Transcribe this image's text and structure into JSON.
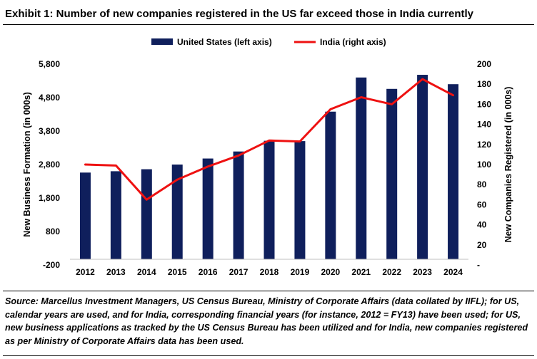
{
  "title": "Exhibit 1: Number of new companies registered in the US far exceed those in India currently",
  "source": "Source: Marcellus Investment Managers, US Census Bureau, Ministry of Corporate Affairs (data collated by IIFL); for US, calendar years are used, and for India, corresponding financial years (for instance, 2012 = FY13) have been used; for US, new business applications as tracked by the US Census Bureau has been utilized and for India, new companies registered as per Ministry of Corporate Affairs data has been used.",
  "chart_data": {
    "type": "bar+line",
    "categories": [
      "2012",
      "2013",
      "2014",
      "2015",
      "2016",
      "2017",
      "2018",
      "2019",
      "2020",
      "2021",
      "2022",
      "2023",
      "2024"
    ],
    "series": [
      {
        "name": "United States (left axis)",
        "type": "bar",
        "axis": "left",
        "color": "#0f1f5c",
        "values": [
          2560,
          2600,
          2660,
          2800,
          2980,
          3190,
          3510,
          3500,
          4380,
          5400,
          5060,
          5480,
          5200
        ]
      },
      {
        "name": "India (right axis)",
        "type": "line",
        "axis": "right",
        "color": "#ee1111",
        "values": [
          100,
          99,
          65,
          85,
          98,
          109,
          124,
          123,
          155,
          167,
          160,
          185,
          169
        ]
      }
    ],
    "ylabel": "New Business Formation (in 000s)",
    "y2label": "New Companies Registered (in 000s)",
    "ylim": [
      -200,
      5800
    ],
    "yticks": [
      "5,800",
      "4,800",
      "3,800",
      "2,800",
      "1,800",
      "800",
      "-200"
    ],
    "y2lim": [
      0,
      200
    ],
    "y2ticks": [
      "200",
      "180",
      "160",
      "140",
      "120",
      "100",
      "80",
      "60",
      "40",
      "20",
      "-"
    ],
    "legend_position": "top-center",
    "grid": false
  }
}
